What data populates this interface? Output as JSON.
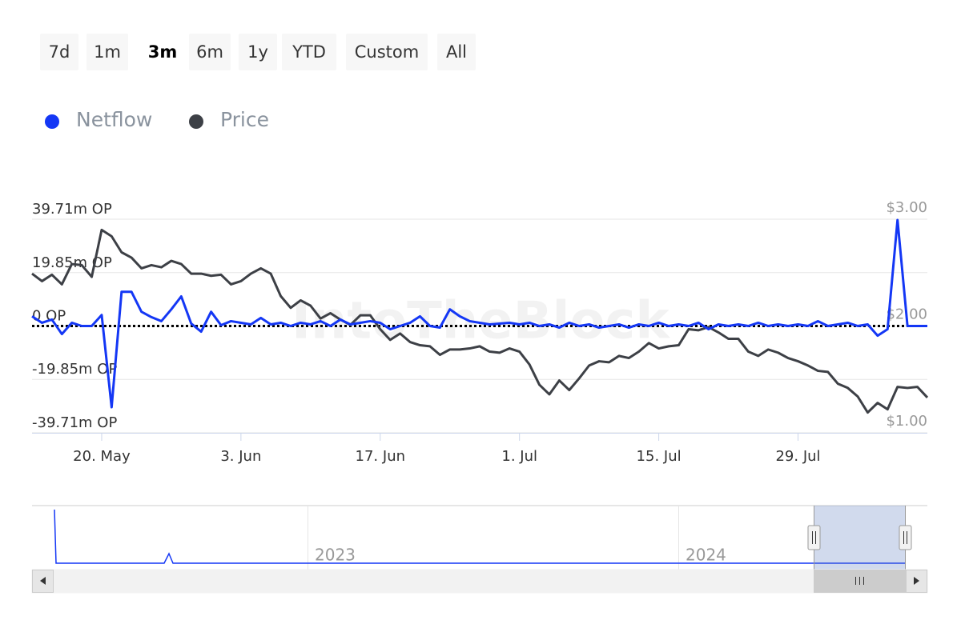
{
  "range_selector": {
    "buttons": [
      "7d",
      "1m",
      "3m",
      "6m",
      "1y",
      "YTD",
      "Custom",
      "All"
    ],
    "selected": 2
  },
  "watermark": "IntoTheBlock",
  "navigator": {
    "labels": [
      "2023",
      "2024"
    ]
  },
  "chart_data": {
    "type": "line",
    "categories": [
      null,
      null,
      null,
      null,
      null,
      null,
      null,
      "20. May",
      null,
      null,
      null,
      null,
      null,
      null,
      null,
      null,
      null,
      null,
      null,
      null,
      null,
      "3. Jun",
      null,
      null,
      null,
      null,
      null,
      null,
      null,
      null,
      null,
      null,
      null,
      null,
      null,
      "17. Jun",
      null,
      null,
      null,
      null,
      null,
      null,
      null,
      null,
      null,
      null,
      null,
      null,
      null,
      "1. Jul",
      null,
      null,
      null,
      null,
      null,
      null,
      null,
      null,
      null,
      null,
      null,
      null,
      null,
      "15. Jul",
      null,
      null,
      null,
      null,
      null,
      null,
      null,
      null,
      null,
      null,
      null,
      null,
      null,
      "29. Jul",
      null,
      null,
      null,
      null,
      null,
      null,
      null,
      null,
      null,
      null,
      null,
      null,
      null
    ],
    "series": [
      {
        "name": "Netflow",
        "color": "#1437f5",
        "axis": "y",
        "values": [
          3600000,
          1200000,
          2400000,
          -3000000,
          1200000,
          0,
          0,
          4100000,
          -30200000,
          12700000,
          12700000,
          5300000,
          3300000,
          1800000,
          6200000,
          11000000,
          900000,
          -2100000,
          5300000,
          300000,
          1800000,
          1200000,
          600000,
          3000000,
          600000,
          1200000,
          0,
          1200000,
          600000,
          1800000,
          0,
          2400000,
          600000,
          1200000,
          1800000,
          1200000,
          -1200000,
          0,
          1200000,
          3600000,
          0,
          -600000,
          6200000,
          3600000,
          1800000,
          1200000,
          600000,
          900000,
          1200000,
          600000,
          1200000,
          0,
          600000,
          -600000,
          1200000,
          0,
          600000,
          -600000,
          0,
          600000,
          -600000,
          600000,
          0,
          1200000,
          0,
          600000,
          0,
          1200000,
          -1200000,
          600000,
          0,
          600000,
          0,
          1200000,
          0,
          600000,
          0,
          600000,
          0,
          1800000,
          0,
          600000,
          1200000,
          0,
          600000,
          -3600000,
          -1200000,
          39400000,
          0,
          0,
          0
        ]
      },
      {
        "name": "Price",
        "color": "#3d4046",
        "axis": "y2",
        "values": [
          2.49,
          2.42,
          2.48,
          2.39,
          2.58,
          2.57,
          2.46,
          2.9,
          2.84,
          2.69,
          2.64,
          2.54,
          2.57,
          2.55,
          2.61,
          2.58,
          2.49,
          2.49,
          2.47,
          2.48,
          2.39,
          2.42,
          2.49,
          2.54,
          2.49,
          2.28,
          2.17,
          2.24,
          2.19,
          2.07,
          2.12,
          2.06,
          2.01,
          2.1,
          2.1,
          1.97,
          1.87,
          1.93,
          1.85,
          1.82,
          1.81,
          1.73,
          1.78,
          1.78,
          1.79,
          1.81,
          1.76,
          1.75,
          1.79,
          1.76,
          1.64,
          1.45,
          1.36,
          1.49,
          1.4,
          1.51,
          1.63,
          1.67,
          1.66,
          1.72,
          1.7,
          1.76,
          1.84,
          1.79,
          1.81,
          1.82,
          1.97,
          1.96,
          1.99,
          1.94,
          1.88,
          1.88,
          1.76,
          1.72,
          1.78,
          1.75,
          1.7,
          1.67,
          1.63,
          1.58,
          1.57,
          1.46,
          1.42,
          1.34,
          1.19,
          1.28,
          1.22,
          1.43,
          1.42,
          1.43,
          1.33
        ]
      }
    ],
    "ylim": [
      -39710000,
      39710000
    ],
    "yticks": [
      {
        "value": 39710000,
        "label": "39.71m OP"
      },
      {
        "value": 19850000,
        "label": "19.85m OP"
      },
      {
        "value": 0,
        "label": "0 OP"
      },
      {
        "value": -19850000,
        "label": "-19.85m OP"
      },
      {
        "value": -39710000,
        "label": "-39.71m OP"
      }
    ],
    "y2lim": [
      1,
      3
    ],
    "y2ticks": [
      {
        "value": 3,
        "label": "$3.00"
      },
      {
        "value": 2,
        "label": "$2.00"
      },
      {
        "value": 1,
        "label": "$1.00"
      }
    ],
    "grid": true,
    "zero_line": true
  }
}
